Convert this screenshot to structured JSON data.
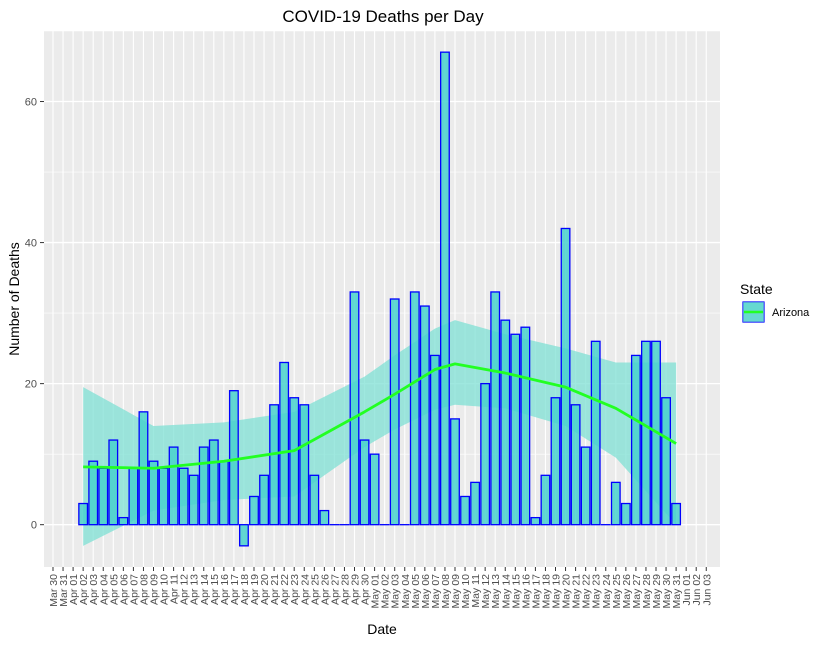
{
  "chart_data": {
    "type": "bar",
    "title": "COVID-19 Deaths per Day",
    "xlabel": "Date",
    "ylabel": "Number of Deaths",
    "x_tick_labels": [
      "Mar 30",
      "Mar 31",
      "Apr 01",
      "Apr 02",
      "Apr 03",
      "Apr 04",
      "Apr 05",
      "Apr 06",
      "Apr 07",
      "Apr 08",
      "Apr 09",
      "Apr 10",
      "Apr 11",
      "Apr 12",
      "Apr 13",
      "Apr 14",
      "Apr 15",
      "Apr 16",
      "Apr 17",
      "Apr 18",
      "Apr 19",
      "Apr 20",
      "Apr 21",
      "Apr 22",
      "Apr 23",
      "Apr 24",
      "Apr 25",
      "Apr 26",
      "Apr 27",
      "Apr 28",
      "Apr 29",
      "Apr 30",
      "May 01",
      "May 02",
      "May 03",
      "May 04",
      "May 05",
      "May 06",
      "May 07",
      "May 08",
      "May 09",
      "May 10",
      "May 11",
      "May 12",
      "May 13",
      "May 14",
      "May 15",
      "May 16",
      "May 17",
      "May 18",
      "May 19",
      "May 20",
      "May 21",
      "May 22",
      "May 23",
      "May 24",
      "May 25",
      "May 26",
      "May 27",
      "May 28",
      "May 29",
      "May 30",
      "May 31",
      "Jun 01",
      "Jun 02",
      "Jun 03"
    ],
    "ylim": [
      -6,
      70
    ],
    "y_ticks": [
      0,
      20,
      40,
      60
    ],
    "grid": true,
    "legend": {
      "title": "State",
      "position": "right",
      "entries": [
        "Arizona"
      ]
    },
    "colors": {
      "bar_fill": "#48d1cc",
      "bar_stroke": "#0000ff",
      "smooth_line": "#22ff22",
      "ribbon": "#7fe0d4",
      "panel": "#ebebeb",
      "grid": "#ffffff"
    },
    "series": [
      {
        "name": "Arizona",
        "x": [
          "Apr 02",
          "Apr 03",
          "Apr 04",
          "Apr 05",
          "Apr 06",
          "Apr 07",
          "Apr 08",
          "Apr 09",
          "Apr 10",
          "Apr 11",
          "Apr 12",
          "Apr 13",
          "Apr 14",
          "Apr 15",
          "Apr 16",
          "Apr 17",
          "Apr 18",
          "Apr 19",
          "Apr 20",
          "Apr 21",
          "Apr 22",
          "Apr 23",
          "Apr 24",
          "Apr 25",
          "Apr 26",
          "Apr 27",
          "Apr 28",
          "Apr 29",
          "Apr 30",
          "May 01",
          "May 02",
          "May 03",
          "May 04",
          "May 05",
          "May 06",
          "May 07",
          "May 08",
          "May 09",
          "May 10",
          "May 11",
          "May 12",
          "May 13",
          "May 14",
          "May 15",
          "May 16",
          "May 17",
          "May 18",
          "May 19",
          "May 20",
          "May 21",
          "May 22",
          "May 23",
          "May 24",
          "May 25",
          "May 26",
          "May 27",
          "May 28",
          "May 29",
          "May 30",
          "May 31"
        ],
        "values": [
          3,
          9,
          8,
          12,
          1,
          8,
          16,
          9,
          8,
          11,
          8,
          7,
          11,
          12,
          9,
          19,
          -3,
          4,
          7,
          17,
          23,
          18,
          17,
          7,
          2,
          0,
          0,
          33,
          12,
          10,
          0,
          32,
          0,
          33,
          31,
          24,
          67,
          15,
          4,
          6,
          20,
          33,
          29,
          27,
          28,
          1,
          7,
          18,
          42,
          17,
          11,
          26,
          0,
          6,
          3,
          24,
          26,
          26,
          18,
          3
        ]
      }
    ],
    "smooth": {
      "x": [
        "Apr 02",
        "Apr 09",
        "Apr 16",
        "Apr 23",
        "Apr 30",
        "May 03",
        "May 07",
        "May 09",
        "May 14",
        "May 20",
        "May 25",
        "May 31"
      ],
      "fit": [
        8.2,
        8.0,
        9.0,
        10.5,
        16.0,
        18.5,
        22.0,
        22.8,
        21.5,
        19.5,
        16.5,
        11.5
      ],
      "lower": [
        -3.0,
        2.0,
        3.5,
        4.0,
        11.0,
        13.5,
        16.3,
        17.0,
        16.5,
        14.0,
        9.5,
        0.0
      ],
      "upper": [
        19.5,
        14.0,
        14.5,
        16.0,
        21.0,
        24.0,
        27.8,
        29.0,
        27.0,
        25.0,
        23.0,
        23.0
      ]
    }
  }
}
